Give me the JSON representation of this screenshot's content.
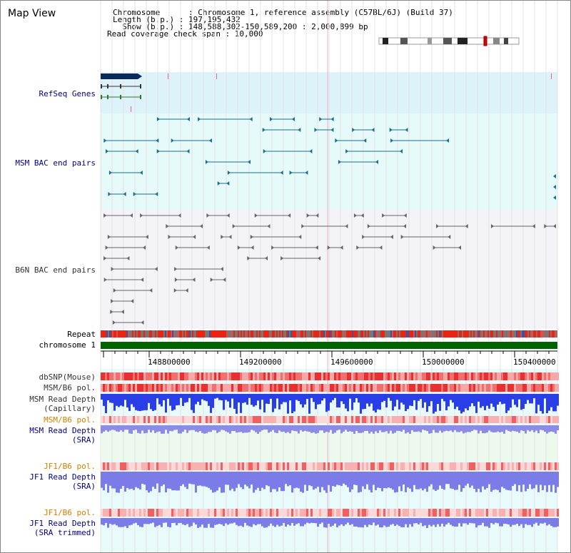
{
  "title": "Map View",
  "header": {
    "chromosome": "Chromosome      : Chromosome 1, reference assembly (C57BL/6J) (Build 37)",
    "length": "Length (b.p.) : 197,195,432",
    "show": "  Show (b.p.) : 148,588,302-150,589,200 : 2,000,899 bp",
    "coverage": "Read coverage check span : 10,000"
  },
  "tracks": {
    "refseq": "RefSeq Genes",
    "msm_bac": "MSM BAC end pairs",
    "b6n_bac": "B6N BAC end pairs",
    "repeat": "Repeat",
    "chromosome": "chromosome 1",
    "dbsnp": "dbSNP(Mouse)",
    "msm_b6_pol": "MSM/B6 pol.",
    "msm_read_depth_cap_1": "MSM Read Depth",
    "msm_read_depth_cap_2": "(Capillary)",
    "msm_b6_pol_2": "MSM/B6 pol.",
    "msm_read_depth_sra_1": "MSM Read Depth",
    "msm_read_depth_sra_2": "(SRA)",
    "jf1_b6_pol": "JF1/B6 pol.",
    "jf1_read_depth_1": "JF1 Read Depth",
    "jf1_read_depth_2": "(SRA)",
    "jf1_b6_pol_2": "JF1/B6 pol.",
    "jf1_read_depth_trim_1": "JF1 Read Depth",
    "jf1_read_depth_trim_2": "(SRA trimmed)"
  },
  "axis_ticks": [
    "148800000",
    "149200000",
    "149600000",
    "150000000",
    "150400000"
  ],
  "colors": {
    "refseq_bg": "#def2fa",
    "msm_bg": "#e6fafa",
    "b6n_bg": "#f3f3f8",
    "msm_feature": "#1a6f8f",
    "b6n_feature": "#666666",
    "chromosome_bar": "#006400",
    "navy_label": "#00008b",
    "orange_label": "#d08000"
  }
}
